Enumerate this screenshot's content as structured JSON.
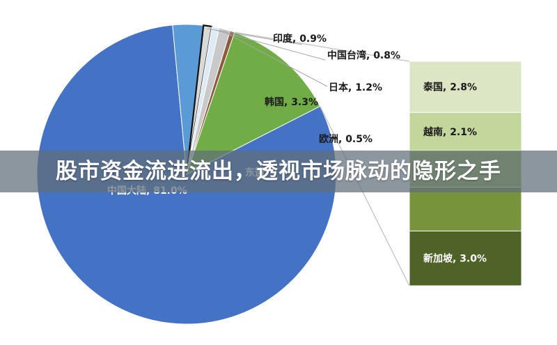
{
  "banner": {
    "title": "股市资金流进流出，透视市场脉动的隐形之手"
  },
  "chart_data": {
    "type": "pie",
    "title": "",
    "series": [
      {
        "label": "中国大陆",
        "value": 81.0,
        "color": "#4472C4",
        "display": "中国大陆, 81.0%"
      },
      {
        "label": "韩国",
        "value": 3.3,
        "color": "#5B9BD5",
        "display": "韩国, 3.3%"
      },
      {
        "label": "印度",
        "value": 0.9,
        "color": "#D9D9D9",
        "display": "印度, 0.9%"
      },
      {
        "label": "中国台湾",
        "value": 0.8,
        "color": "#DEEAF6",
        "display": "中国台湾, 0.8%"
      },
      {
        "label": "日本",
        "value": 1.2,
        "color": "#C9C9C9",
        "display": "日本, 1.2%"
      },
      {
        "label": "欧洲",
        "value": 0.5,
        "color": "#8C5A3C",
        "display": "欧洲, 0.5%"
      },
      {
        "label": "东盟",
        "value": 12.3,
        "color": "#70AD47",
        "display": "东盟"
      }
    ],
    "breakout": {
      "parent": "东盟",
      "segments": [
        {
          "label": "泰国",
          "value": 2.8,
          "color": "#DCE6C4",
          "display": "泰国, 2.8%"
        },
        {
          "label": "越南",
          "value": 2.1,
          "color": "#C3D69B",
          "display": "越南, 2.1%"
        },
        {
          "label": "",
          "value": 2.0,
          "color": "#9BBB59",
          "display": ""
        },
        {
          "label": "",
          "value": 2.4,
          "color": "#77933C",
          "display": ""
        },
        {
          "label": "新加坡",
          "value": 3.0,
          "color": "#4F6228",
          "display": "新加坡, 3.0%"
        }
      ]
    }
  }
}
